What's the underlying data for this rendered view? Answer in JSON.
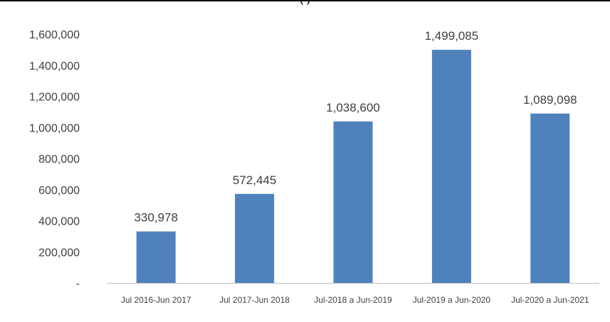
{
  "header": {
    "partial_title": "(                                                        )"
  },
  "chart_data": {
    "type": "bar",
    "categories": [
      "Jul 2016-Jun 2017",
      "Jul 2017-Jun 2018",
      "Jul-2018 a Jun-2019",
      "Jul-2019 a Jun-2020",
      "Jul-2020 a Jun-2021"
    ],
    "values": [
      330978,
      572445,
      1038600,
      1499085,
      1089098
    ],
    "data_labels": [
      "330,978",
      "572,445",
      "1,038,600",
      "1,499,085",
      "1,089,098"
    ],
    "y_ticks": [
      0,
      200000,
      400000,
      600000,
      800000,
      1000000,
      1200000,
      1400000,
      1600000
    ],
    "y_tick_labels": [
      "-",
      "200,000",
      "400,000",
      "600,000",
      "800,000",
      "1,000,000",
      "1,200,000",
      "1,400,000",
      "1,600,000"
    ],
    "ylim": [
      0,
      1600000
    ],
    "grid": false,
    "legend": "none",
    "bar_color": "#4F81BD",
    "axis_color": "#BFBFBF",
    "text_color": "#404040"
  }
}
